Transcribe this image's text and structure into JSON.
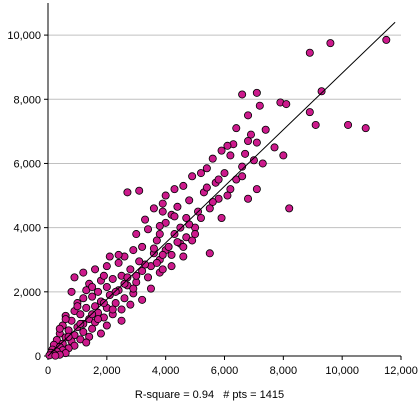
{
  "chart_data": {
    "type": "scatter",
    "title": "",
    "xlabel": "",
    "ylabel": "",
    "xlim": [
      0,
      12000
    ],
    "ylim": [
      0,
      11000
    ],
    "x_ticks": [
      "0",
      "2,000",
      "4,000",
      "6,000",
      "8,000",
      "10,000",
      "12,000"
    ],
    "y_ticks": [
      "0",
      "2,000",
      "4,000",
      "6,000",
      "8,000",
      "10,000"
    ],
    "grid": "horizontal",
    "marker_color": "#cc1a8c",
    "marker_edge": "#000000",
    "line_color": "#000000",
    "fit_line": {
      "x": [
        0,
        11800
      ],
      "y": [
        0,
        10400
      ]
    },
    "stats_text": "R-square = 0.94   # pts = 1415",
    "points": [
      [
        11500,
        9850
      ],
      [
        9600,
        9750
      ],
      [
        8900,
        9450
      ],
      [
        9300,
        8250
      ],
      [
        7100,
        8200
      ],
      [
        6600,
        8150
      ],
      [
        7900,
        7900
      ],
      [
        8100,
        7850
      ],
      [
        7200,
        7800
      ],
      [
        8900,
        7600
      ],
      [
        6800,
        7500
      ],
      [
        10200,
        7200
      ],
      [
        10800,
        7100
      ],
      [
        9100,
        7200
      ],
      [
        6400,
        7100
      ],
      [
        7400,
        7050
      ],
      [
        6900,
        6900
      ],
      [
        7100,
        6650
      ],
      [
        6800,
        6700
      ],
      [
        6300,
        6600
      ],
      [
        7700,
        6500
      ],
      [
        6100,
        6550
      ],
      [
        5900,
        6400
      ],
      [
        6700,
        6300
      ],
      [
        8000,
        6250
      ],
      [
        6200,
        6250
      ],
      [
        5600,
        6150
      ],
      [
        7300,
        6000
      ],
      [
        6600,
        5900
      ],
      [
        5400,
        5850
      ],
      [
        5200,
        5700
      ],
      [
        6000,
        5700
      ],
      [
        4900,
        5600
      ],
      [
        6400,
        5500
      ],
      [
        5700,
        5400
      ],
      [
        4600,
        5300
      ],
      [
        4300,
        5200
      ],
      [
        3100,
        5150
      ],
      [
        2700,
        5100
      ],
      [
        5300,
        5100
      ],
      [
        4000,
        5000
      ],
      [
        5800,
        4900
      ],
      [
        4800,
        4850
      ],
      [
        3900,
        4750
      ],
      [
        4400,
        4650
      ],
      [
        3600,
        4600
      ],
      [
        5100,
        4500
      ],
      [
        4200,
        4400
      ],
      [
        4700,
        4300
      ],
      [
        3300,
        4250
      ],
      [
        4000,
        4150
      ],
      [
        3800,
        4050
      ],
      [
        4500,
        4000
      ],
      [
        3400,
        3950
      ],
      [
        5000,
        4000
      ],
      [
        4700,
        3700
      ],
      [
        4300,
        3800
      ],
      [
        3000,
        3800
      ],
      [
        3700,
        3600
      ],
      [
        4500,
        3500
      ],
      [
        4900,
        3600
      ],
      [
        3200,
        3400
      ],
      [
        4600,
        3400
      ],
      [
        4000,
        3300
      ],
      [
        4200,
        3150
      ],
      [
        2900,
        3300
      ],
      [
        3600,
        3200
      ],
      [
        2600,
        3100
      ],
      [
        3800,
        3000
      ],
      [
        2400,
        2900
      ],
      [
        5500,
        3200
      ],
      [
        4200,
        2800
      ],
      [
        2000,
        2800
      ],
      [
        1600,
        2700
      ],
      [
        2800,
        2700
      ],
      [
        3200,
        2650
      ],
      [
        1200,
        2600
      ],
      [
        3800,
        2600
      ],
      [
        2500,
        2500
      ],
      [
        900,
        2450
      ],
      [
        3400,
        2450
      ],
      [
        2200,
        2400
      ],
      [
        1800,
        2350
      ],
      [
        3000,
        2300
      ],
      [
        2700,
        2200
      ],
      [
        1400,
        2250
      ],
      [
        2000,
        2150
      ],
      [
        3500,
        2100
      ],
      [
        2400,
        2050
      ],
      [
        1700,
        2000
      ],
      [
        800,
        2000
      ],
      [
        2900,
        1950
      ],
      [
        2100,
        1900
      ],
      [
        1500,
        1850
      ],
      [
        2600,
        1800
      ],
      [
        1200,
        1800
      ],
      [
        3200,
        1750
      ],
      [
        1800,
        1700
      ],
      [
        2300,
        1650
      ],
      [
        1000,
        1650
      ],
      [
        2800,
        1600
      ],
      [
        1600,
        1550
      ],
      [
        2000,
        1500
      ],
      [
        1300,
        1500
      ],
      [
        2500,
        1450
      ],
      [
        900,
        1400
      ],
      [
        1700,
        1350
      ],
      [
        2200,
        1300
      ],
      [
        1100,
        1300
      ],
      [
        600,
        1250
      ],
      [
        1900,
        1200
      ],
      [
        1400,
        1150
      ],
      [
        2500,
        1100
      ],
      [
        800,
        1100
      ],
      [
        1600,
        1050
      ],
      [
        1200,
        1000
      ],
      [
        2000,
        950
      ],
      [
        500,
        950
      ],
      [
        1000,
        900
      ],
      [
        1500,
        850
      ],
      [
        700,
        800
      ],
      [
        1200,
        750
      ],
      [
        1800,
        700
      ],
      [
        400,
        700
      ],
      [
        900,
        650
      ],
      [
        1400,
        600
      ],
      [
        600,
        580
      ],
      [
        1100,
        520
      ],
      [
        300,
        500
      ],
      [
        800,
        460
      ],
      [
        1300,
        420
      ],
      [
        500,
        380
      ],
      [
        200,
        350
      ],
      [
        900,
        320
      ],
      [
        400,
        280
      ],
      [
        700,
        240
      ],
      [
        150,
        200
      ],
      [
        500,
        180
      ],
      [
        300,
        140
      ],
      [
        100,
        100
      ],
      [
        600,
        90
      ],
      [
        200,
        60
      ],
      [
        400,
        40
      ],
      [
        50,
        20
      ],
      [
        250,
        10
      ],
      [
        3500,
        2800
      ],
      [
        3000,
        2500
      ],
      [
        2600,
        2250
      ],
      [
        3900,
        3150
      ],
      [
        4400,
        3550
      ],
      [
        5200,
        4300
      ],
      [
        5600,
        4800
      ],
      [
        6200,
        5200
      ],
      [
        5000,
        3800
      ],
      [
        4100,
        3400
      ],
      [
        3700,
        2900
      ],
      [
        3300,
        2850
      ],
      [
        2300,
        2000
      ],
      [
        1900,
        1650
      ],
      [
        1500,
        1300
      ],
      [
        1100,
        1000
      ],
      [
        700,
        600
      ],
      [
        2700,
        2450
      ],
      [
        3100,
        2950
      ],
      [
        4800,
        4100
      ],
      [
        5500,
        4600
      ],
      [
        6100,
        5000
      ],
      [
        5800,
        5500
      ],
      [
        6600,
        5600
      ],
      [
        7000,
        6100
      ],
      [
        8200,
        4600
      ],
      [
        6800,
        4900
      ],
      [
        7100,
        5200
      ],
      [
        5900,
        4300
      ],
      [
        4600,
        3100
      ],
      [
        3900,
        2700
      ],
      [
        2200,
        1450
      ],
      [
        1700,
        1150
      ],
      [
        2900,
        2100
      ],
      [
        3600,
        3350
      ],
      [
        4300,
        4350
      ],
      [
        3800,
        3800
      ],
      [
        2100,
        3100
      ],
      [
        1900,
        2500
      ],
      [
        1300,
        2050
      ],
      [
        1000,
        1550
      ],
      [
        600,
        1150
      ],
      [
        400,
        850
      ],
      [
        1500,
        2150
      ],
      [
        2400,
        3150
      ],
      [
        3900,
        4500
      ],
      [
        5400,
        5250
      ]
    ]
  }
}
